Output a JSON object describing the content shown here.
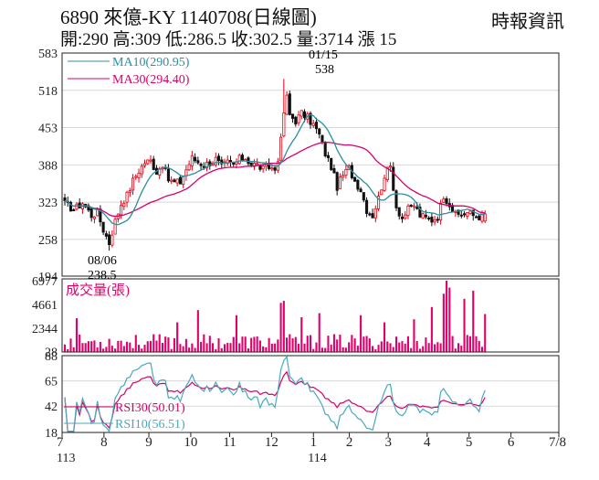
{
  "header": {
    "title": "6890  來億-KY 1140708(日線圖)",
    "quote": "開:290 高:309 低:286.5 收:302.5 量:3714 漲 15",
    "source": "時報資訊"
  },
  "colors": {
    "up": "#e60012",
    "down": "#111111",
    "ma10": "#2a8fa0",
    "ma30": "#d6006b",
    "volume": "#e0006b",
    "rsi30": "#d6006b",
    "rsi10": "#4aa8c0",
    "grid": "#d8d8d8",
    "axis": "#222222"
  },
  "chart_data": [
    {
      "type": "candlestick",
      "title": "6890 來億-KY 1140708(日線圖)",
      "y_ticks": [
        194,
        258,
        323,
        388,
        453,
        518,
        583
      ],
      "ylim": [
        194,
        583
      ],
      "legend": [
        {
          "key": "ma10",
          "label": "MA10(290.95)",
          "value": 290.95
        },
        {
          "key": "ma30",
          "label": "MA30(294.40)",
          "value": 294.4
        }
      ],
      "annotations": [
        {
          "date": "08/06",
          "value": "238.5",
          "kind": "low"
        },
        {
          "date": "01/15",
          "value": "538",
          "kind": "high"
        }
      ],
      "last_bar": {
        "open": 290,
        "high": 309,
        "low": 286.5,
        "close": 302.5,
        "volume": 3714,
        "change": 15
      },
      "price_path": [
        [
          0,
          320
        ],
        [
          3,
          310
        ],
        [
          6,
          322
        ],
        [
          9,
          300
        ],
        [
          11,
          305
        ],
        [
          13,
          275
        ],
        [
          15,
          252
        ],
        [
          17,
          290
        ],
        [
          19,
          320
        ],
        [
          21,
          335
        ],
        [
          23,
          360
        ],
        [
          25,
          378
        ],
        [
          27,
          392
        ],
        [
          29,
          395
        ],
        [
          31,
          376
        ],
        [
          33,
          390
        ],
        [
          35,
          362
        ],
        [
          37,
          357
        ],
        [
          39,
          358
        ],
        [
          41,
          380
        ],
        [
          43,
          400
        ],
        [
          45,
          393
        ],
        [
          47,
          388
        ],
        [
          49,
          392
        ],
        [
          51,
          398
        ],
        [
          53,
          384
        ],
        [
          55,
          392
        ],
        [
          57,
          388
        ],
        [
          59,
          398
        ],
        [
          61,
          400
        ],
        [
          63,
          390
        ],
        [
          65,
          388
        ],
        [
          67,
          380
        ],
        [
          69,
          384
        ],
        [
          71,
          380
        ],
        [
          72,
          400
        ],
        [
          73,
          430
        ],
        [
          74,
          480
        ],
        [
          75,
          505
        ],
        [
          76,
          475
        ],
        [
          78,
          465
        ],
        [
          80,
          478
        ],
        [
          82,
          470
        ],
        [
          84,
          458
        ],
        [
          86,
          440
        ],
        [
          88,
          408
        ],
        [
          90,
          385
        ],
        [
          92,
          350
        ],
        [
          94,
          370
        ],
        [
          96,
          382
        ],
        [
          98,
          360
        ],
        [
          100,
          345
        ],
        [
          102,
          310
        ],
        [
          104,
          300
        ],
        [
          106,
          330
        ],
        [
          108,
          370
        ],
        [
          110,
          385
        ],
        [
          112,
          315
        ],
        [
          114,
          295
        ],
        [
          116,
          310
        ],
        [
          118,
          318
        ],
        [
          120,
          300
        ],
        [
          122,
          295
        ],
        [
          124,
          292
        ],
        [
          126,
          298
        ],
        [
          128,
          335
        ],
        [
          130,
          320
        ],
        [
          132,
          300
        ],
        [
          134,
          302
        ],
        [
          136,
          305
        ],
        [
          138,
          300
        ],
        [
          140,
          298
        ],
        [
          142,
          302.5
        ]
      ]
    },
    {
      "type": "bar",
      "title": "成交量(張)",
      "y_ticks": [
        28,
        2344,
        4661,
        6977
      ],
      "ylim": [
        0,
        6977
      ],
      "last_value": 3714,
      "spikes": [
        [
          4,
          3300
        ],
        [
          38,
          2900
        ],
        [
          45,
          4100
        ],
        [
          58,
          3600
        ],
        [
          73,
          4800
        ],
        [
          74,
          5000
        ],
        [
          80,
          3400
        ],
        [
          86,
          3800
        ],
        [
          100,
          3600
        ],
        [
          108,
          2900
        ],
        [
          118,
          3200
        ],
        [
          124,
          4400
        ],
        [
          128,
          5700
        ],
        [
          129,
          6977
        ],
        [
          130,
          6300
        ],
        [
          135,
          5200
        ],
        [
          138,
          6000
        ],
        [
          142,
          3714
        ]
      ]
    },
    {
      "type": "line",
      "y_ticks": [
        18,
        42,
        65,
        88
      ],
      "ylim": [
        18,
        88
      ],
      "legend": [
        {
          "key": "rsi30",
          "label": "RSI30(50.01)",
          "value": 50.01
        },
        {
          "key": "rsi10",
          "label": "RSI10(56.51)",
          "value": 56.51
        }
      ]
    }
  ],
  "x_axis": {
    "months": [
      {
        "label": "7",
        "pos": 0
      },
      {
        "label": "8",
        "pos": 14
      },
      {
        "label": "9",
        "pos": 29
      },
      {
        "label": "10",
        "pos": 43
      },
      {
        "label": "11",
        "pos": 56
      },
      {
        "label": "12",
        "pos": 70
      },
      {
        "label": "1",
        "pos": 84
      },
      {
        "label": "2",
        "pos": 96
      },
      {
        "label": "3",
        "pos": 109
      },
      {
        "label": "4",
        "pos": 122
      },
      {
        "label": "5",
        "pos": 136
      },
      {
        "label": "6",
        "pos": 150
      },
      {
        "label": "7/8",
        "pos": 166
      }
    ],
    "years": [
      {
        "label": "113",
        "pos": 0
      },
      {
        "label": "114",
        "pos": 84
      }
    ]
  }
}
